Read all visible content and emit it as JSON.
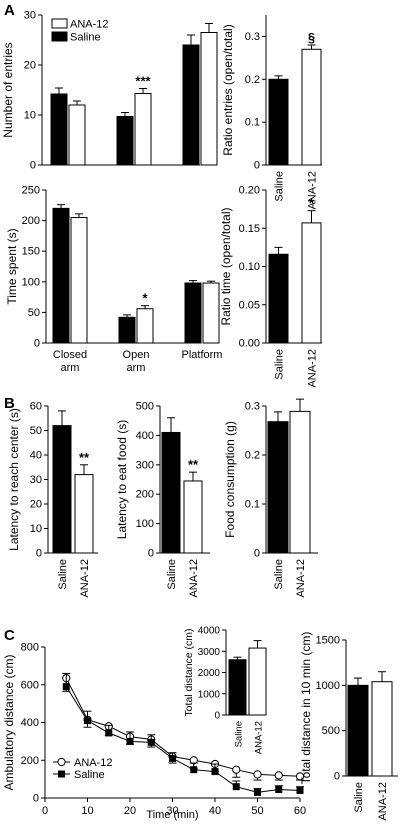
{
  "panel_letters": [
    "A",
    "B",
    "C"
  ],
  "chart_data": [
    {
      "id": "a_entries",
      "type": "bar",
      "categories": [
        "Closed arm",
        "Open arm",
        "Platform"
      ],
      "series": [
        {
          "name": "Saline",
          "fill": "#000000",
          "values": [
            14.2,
            9.7,
            24.0
          ],
          "errors": [
            1.2,
            0.8,
            2.0
          ]
        },
        {
          "name": "ANA-12",
          "fill": "#ffffff",
          "values": [
            12.0,
            14.3,
            26.5
          ],
          "errors": [
            0.8,
            1.0,
            1.8
          ]
        }
      ],
      "annotations": [
        {
          "category": 1,
          "series": 1,
          "text": "***"
        }
      ],
      "ylabel": "Number of entries",
      "ylim": [
        0,
        30
      ],
      "yticks": [
        0,
        10,
        20,
        30
      ],
      "legend": "top-left"
    },
    {
      "id": "a_ratio_entries",
      "type": "bar",
      "categories": [
        "Saline",
        "ANA-12"
      ],
      "values": [
        0.2,
        0.27
      ],
      "errors": [
        0.008,
        0.01
      ],
      "fills": [
        "#000000",
        "#ffffff"
      ],
      "annotations": [
        {
          "index": 1,
          "text": "§"
        }
      ],
      "ylabel": "Ratio entries (open/total)",
      "ylim": [
        0,
        0.35
      ],
      "yticks": [
        0,
        0.1,
        0.2,
        0.3
      ],
      "tick_labels": [
        "0",
        "0.1",
        "0.2",
        "0.3"
      ]
    },
    {
      "id": "a_time",
      "type": "bar",
      "categories": [
        "Closed arm",
        "Open arm",
        "Platform"
      ],
      "series": [
        {
          "name": "Saline",
          "fill": "#000000",
          "values": [
            220,
            42,
            98
          ],
          "errors": [
            6,
            4,
            4
          ]
        },
        {
          "name": "ANA-12",
          "fill": "#ffffff",
          "values": [
            205,
            56,
            98
          ],
          "errors": [
            6,
            5,
            3
          ]
        }
      ],
      "annotations": [
        {
          "category": 1,
          "series": 1,
          "text": "*"
        }
      ],
      "ylabel": "Time spent (s)",
      "ylim": [
        0,
        250
      ],
      "yticks": [
        0,
        50,
        100,
        150,
        200,
        250
      ]
    },
    {
      "id": "a_ratio_time",
      "type": "bar",
      "categories": [
        "Saline",
        "ANA-12"
      ],
      "values": [
        0.116,
        0.157
      ],
      "errors": [
        0.009,
        0.016
      ],
      "fills": [
        "#000000",
        "#ffffff"
      ],
      "annotations": [
        {
          "index": 1,
          "text": "*"
        }
      ],
      "ylabel": "Ratio time (open/total)",
      "ylim": [
        0,
        0.2
      ],
      "yticks": [
        0,
        0.05,
        0.1,
        0.15,
        0.2
      ],
      "tick_labels": [
        "0.00",
        "0.05",
        "0.10",
        "0.15",
        "0.20"
      ]
    },
    {
      "id": "b_center",
      "type": "bar",
      "categories": [
        "Saline",
        "ANA-12"
      ],
      "values": [
        52,
        32
      ],
      "errors": [
        6,
        4
      ],
      "fills": [
        "#000000",
        "#ffffff"
      ],
      "annotations": [
        {
          "index": 1,
          "text": "**"
        }
      ],
      "ylabel": "Latency to reach center (s)",
      "ylim": [
        0,
        60
      ],
      "yticks": [
        0,
        10,
        20,
        30,
        40,
        50,
        60
      ]
    },
    {
      "id": "b_food",
      "type": "bar",
      "categories": [
        "Saline",
        "ANA-12"
      ],
      "values": [
        410,
        245
      ],
      "errors": [
        50,
        30
      ],
      "fills": [
        "#000000",
        "#ffffff"
      ],
      "annotations": [
        {
          "index": 1,
          "text": "**"
        }
      ],
      "ylabel": "Latency to eat food (s)",
      "ylim": [
        0,
        500
      ],
      "yticks": [
        0,
        100,
        200,
        300,
        400,
        500
      ]
    },
    {
      "id": "b_consumption",
      "type": "bar",
      "categories": [
        "Saline",
        "ANA-12"
      ],
      "values": [
        0.268,
        0.289
      ],
      "errors": [
        0.02,
        0.025
      ],
      "fills": [
        "#000000",
        "#ffffff"
      ],
      "ylabel": "Food consumption (g)",
      "ylim": [
        0,
        0.3
      ],
      "yticks": [
        0,
        0.1,
        0.2,
        0.3
      ],
      "tick_labels": [
        "0",
        "0.1",
        "0.2",
        "0.3"
      ]
    },
    {
      "id": "c_line",
      "type": "line",
      "x": [
        5,
        10,
        15,
        20,
        25,
        30,
        35,
        40,
        45,
        50,
        55,
        60
      ],
      "series": [
        {
          "name": "ANA-12",
          "marker": "open-circle",
          "values": [
            635,
            415,
            380,
            325,
            310,
            220,
            200,
            180,
            150,
            125,
            120,
            115
          ],
          "errors": [
            70,
            40,
            50,
            40,
            40,
            35,
            45,
            40,
            40,
            30,
            25,
            20
          ]
        },
        {
          "name": "Saline",
          "marker": "filled-square",
          "values": [
            590,
            410,
            345,
            300,
            295,
            210,
            150,
            140,
            60,
            30,
            45,
            40
          ],
          "errors": [
            70,
            50,
            40,
            50,
            40,
            30,
            35,
            40,
            30,
            20,
            20,
            20
          ]
        }
      ],
      "xlabel": "Time (min)",
      "ylabel": "Ambulatory distance (cm)",
      "xlim": [
        0,
        60
      ],
      "xticks": [
        0,
        10,
        20,
        30,
        40,
        50,
        60
      ],
      "ylim": [
        0,
        800
      ],
      "yticks": [
        0,
        200,
        400,
        600,
        800
      ],
      "legend": "bottom-left"
    },
    {
      "id": "c_inset",
      "type": "bar",
      "categories": [
        "Saline",
        "ANA-12"
      ],
      "values": [
        2600,
        3150
      ],
      "errors": [
        120,
        350
      ],
      "fills": [
        "#000000",
        "#ffffff"
      ],
      "ylabel": "Total distance (cm)",
      "ylim": [
        0,
        4000
      ],
      "yticks": [
        0,
        1000,
        2000,
        3000,
        4000
      ]
    },
    {
      "id": "c_total",
      "type": "bar",
      "categories": [
        "Saline",
        "ANA-12"
      ],
      "values": [
        1000,
        1040
      ],
      "errors": [
        80,
        110
      ],
      "fills": [
        "#000000",
        "#ffffff"
      ],
      "ylabel": "Total distance in 10 min (cm)",
      "ylim": [
        0,
        1500
      ],
      "yticks": [
        0,
        500,
        1000,
        1500
      ]
    }
  ]
}
